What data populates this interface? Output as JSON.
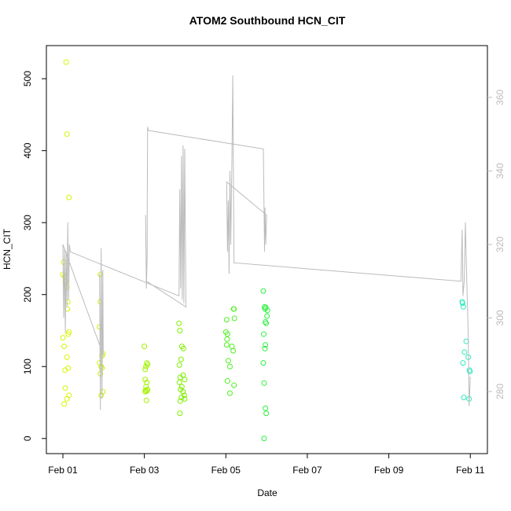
{
  "chart_data": {
    "type": "scatter",
    "title": "ATOM2 Southbound HCN_CIT",
    "xlabel": "Date",
    "ylabel": "HCN_CIT",
    "xlim": [
      -0.405,
      10.42
    ],
    "ylim": [
      -21,
      546
    ],
    "y2lim": [
      263.1,
      374.1
    ],
    "xticks": [
      {
        "value": 0,
        "label": "Feb 01"
      },
      {
        "value": 2,
        "label": "Feb 03"
      },
      {
        "value": 4,
        "label": "Feb 05"
      },
      {
        "value": 6,
        "label": "Feb 07"
      },
      {
        "value": 8,
        "label": "Feb 09"
      },
      {
        "value": 10,
        "label": "Feb 11"
      }
    ],
    "yticks": [
      0,
      100,
      200,
      300,
      400,
      500
    ],
    "y2ticks": [
      280,
      300,
      320,
      340,
      360
    ],
    "series": [
      {
        "color": "#d8f500",
        "x": [
          0.08,
          0.1,
          0.15,
          0.02,
          0.0,
          0.04,
          0.06,
          0.1,
          0.12,
          0.11,
          0.15,
          0.13,
          0.0,
          0.03,
          0.1,
          0.13,
          0.05,
          0.06,
          0.15,
          0.1,
          0.03
        ],
        "values": [
          523,
          423,
          335,
          245,
          228,
          225,
          218,
          210,
          190,
          180,
          148,
          145,
          140,
          128,
          113,
          98,
          95,
          70,
          60,
          55,
          48
        ]
      },
      {
        "color": "#c6f500",
        "x": [
          0.92,
          0.92,
          0.9,
          0.98,
          0.96,
          0.9,
          0.94,
          0.96,
          0.92,
          0.98,
          0.94
        ],
        "values": [
          228,
          190,
          155,
          118,
          115,
          105,
          100,
          98,
          90,
          65,
          60
        ]
      },
      {
        "color": "#a2f200",
        "x": [
          2.0,
          2.06,
          2.08,
          2.04,
          2.02,
          2.02,
          2.06,
          2.04,
          2.08,
          2.03,
          2.06,
          2.02,
          2.05
        ],
        "values": [
          128,
          105,
          103,
          100,
          96,
          82,
          78,
          72,
          68,
          67,
          66,
          65,
          53
        ]
      },
      {
        "color": "#7ef000",
        "x": [
          2.85,
          2.87,
          2.92,
          2.96,
          2.9,
          2.86,
          2.95,
          2.88,
          2.99,
          2.86,
          2.92,
          2.89,
          2.95,
          2.98,
          2.91,
          2.99,
          2.88,
          2.87
        ],
        "values": [
          160,
          150,
          128,
          125,
          110,
          102,
          88,
          85,
          82,
          78,
          72,
          68,
          65,
          60,
          57,
          55,
          52,
          35
        ]
      },
      {
        "color": "#4ff020",
        "x": [
          4.02,
          4.0,
          4.04,
          4.03,
          4.02,
          4.15,
          4.18,
          4.06,
          4.1,
          4.04,
          4.2,
          4.1,
          4.19,
          4.2,
          4.21
        ],
        "values": [
          165,
          148,
          145,
          138,
          130,
          128,
          122,
          108,
          100,
          80,
          74,
          63,
          180,
          180,
          167
        ]
      },
      {
        "color": "#2ef040",
        "x": [
          4.92,
          4.95,
          4.98,
          4.96,
          5.02,
          5.01,
          4.97,
          4.99,
          4.93,
          4.97,
          4.96,
          4.92,
          4.94,
          4.97,
          4.99,
          4.94
        ],
        "values": [
          205,
          183,
          182,
          180,
          178,
          170,
          162,
          160,
          145,
          130,
          125,
          105,
          77,
          42,
          35,
          0
        ]
      },
      {
        "color": "#2ee8c0",
        "x": [
          9.8,
          9.81,
          9.83,
          9.9,
          9.86,
          9.95,
          9.82,
          9.98,
          9.99,
          9.84,
          9.97
        ],
        "values": [
          190,
          188,
          183,
          135,
          120,
          113,
          105,
          95,
          93,
          57,
          55
        ]
      },
      {
        "type": "line",
        "axis": "y2",
        "color": "#bbbbbb",
        "x": [
          0.9,
          0.92,
          0.94,
          0.96,
          0.98,
          0.99,
          0.0,
          0.02,
          0.04,
          0.06,
          0.08,
          0.1,
          0.12,
          0.14,
          0.16,
          0.18,
          2.85,
          2.87,
          2.89,
          2.91,
          2.93,
          2.95,
          2.97,
          2.99,
          3.02,
          2.05,
          2.03,
          2.05,
          2.07,
          2.07,
          2.08,
          2.1,
          4.92,
          4.95,
          4.96,
          4.98,
          5.0,
          4.02,
          4.04,
          4.06,
          4.08,
          4.1,
          4.12,
          4.15,
          4.17,
          4.2,
          9.77,
          9.8,
          9.82,
          9.85,
          9.88,
          9.9,
          9.95,
          9.97,
          10.0
        ],
        "values": [
          312,
          275,
          319,
          278,
          313,
          290,
          320,
          300,
          319,
          296,
          318,
          303,
          326,
          305,
          320,
          318,
          306,
          335,
          308,
          344,
          305,
          347,
          304,
          346,
          303,
          310,
          328,
          308,
          318,
          330,
          352,
          351,
          346,
          318,
          330,
          320,
          328,
          337,
          318,
          332,
          312,
          340,
          320,
          344,
          366,
          315,
          310,
          324,
          306,
          310,
          326,
          316,
          295,
          276,
          284
        ]
      }
    ]
  }
}
